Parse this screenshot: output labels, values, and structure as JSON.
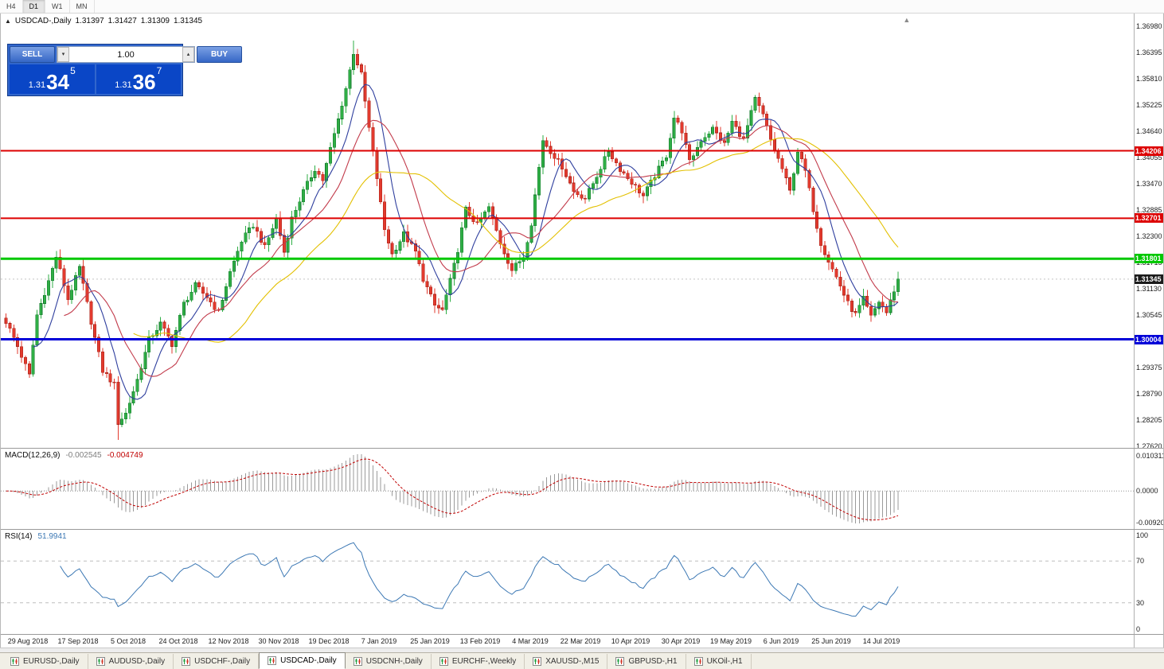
{
  "toolbar": {
    "timeframes": [
      {
        "label": "H4",
        "active": false
      },
      {
        "label": "D1",
        "active": true
      },
      {
        "label": "W1",
        "active": false
      },
      {
        "label": "MN",
        "active": false
      }
    ]
  },
  "chart": {
    "symbol_label": "USDCAD-,Daily",
    "open": "1.31397",
    "high": "1.31427",
    "low": "1.31309",
    "close": "1.31345",
    "collapse_icon": "▲",
    "shift_icon": "▲"
  },
  "trade_panel": {
    "sell_label": "SELL",
    "buy_label": "BUY",
    "lot_value": "1.00",
    "lot_down_icon": "▾",
    "lot_up_icon": "▴",
    "sell_price": {
      "prefix": "1.31",
      "big": "34",
      "sup": "5"
    },
    "buy_price": {
      "prefix": "1.31",
      "big": "36",
      "sup": "7"
    }
  },
  "chart_data": {
    "type": "candlestick",
    "symbol": "USDCAD",
    "timeframe": "Daily",
    "bar_count": 232,
    "last_close": 1.31345,
    "price_range": {
      "top": 1.37264,
      "bottom": 1.27585
    },
    "price_axis_ticks": [
      "1.36980",
      "1.36395",
      "1.35810",
      "1.35225",
      "1.34640",
      "1.34055",
      "1.33470",
      "1.32885",
      "1.32300",
      "1.31715",
      "1.31130",
      "1.30545",
      "1.29960",
      "1.29375",
      "1.28790",
      "1.28205",
      "1.27620"
    ],
    "levels": [
      {
        "price": 1.34206,
        "label": "1.34206",
        "color": "#dd0000",
        "width": 2,
        "type": "resistance"
      },
      {
        "price": 1.32701,
        "label": "1.32701",
        "color": "#dd0000",
        "width": 2,
        "type": "resistance"
      },
      {
        "price": 1.31801,
        "label": "1.31801",
        "color": "#00c800",
        "width": 3,
        "type": "support"
      },
      {
        "price": 1.30004,
        "label": "1.30004",
        "color": "#0000d8",
        "width": 3,
        "type": "support"
      }
    ],
    "current_price": {
      "value": 1.31345,
      "label": "1.31345",
      "color": "#1b1b1b"
    },
    "candle_up_color": "#2fae45",
    "candle_up_border": "#157a2e",
    "candle_down_color": "#e23a2e",
    "candle_down_border": "#a8241b",
    "moving_averages": [
      {
        "period": 8,
        "color": "#2f3f9e"
      },
      {
        "period": 16,
        "color": "#c23b4b"
      },
      {
        "period": 34,
        "color": "#e3c000"
      }
    ],
    "close_path": [
      [
        0,
        1.304
      ],
      [
        3,
        1.2985
      ],
      [
        6,
        1.292
      ],
      [
        8,
        1.3055
      ],
      [
        11,
        1.313
      ],
      [
        13,
        1.3185
      ],
      [
        16,
        1.309
      ],
      [
        19,
        1.316
      ],
      [
        22,
        1.304
      ],
      [
        25,
        1.293
      ],
      [
        28,
        1.29
      ],
      [
        29,
        1.2815
      ],
      [
        31,
        1.2835
      ],
      [
        34,
        1.291
      ],
      [
        37,
        1.3
      ],
      [
        40,
        1.3035
      ],
      [
        43,
        1.299
      ],
      [
        46,
        1.308
      ],
      [
        49,
        1.312
      ],
      [
        52,
        1.3095
      ],
      [
        55,
        1.306
      ],
      [
        58,
        1.315
      ],
      [
        61,
        1.322
      ],
      [
        64,
        1.3255
      ],
      [
        67,
        1.3205
      ],
      [
        70,
        1.327
      ],
      [
        72,
        1.3195
      ],
      [
        74,
        1.327
      ],
      [
        77,
        1.333
      ],
      [
        80,
        1.338
      ],
      [
        82,
        1.3355
      ],
      [
        84,
        1.3425
      ],
      [
        86,
        1.349
      ],
      [
        88,
        1.356
      ],
      [
        90,
        1.364
      ],
      [
        92,
        1.359
      ],
      [
        94,
        1.347
      ],
      [
        96,
        1.336
      ],
      [
        98,
        1.3245
      ],
      [
        100,
        1.319
      ],
      [
        103,
        1.3235
      ],
      [
        106,
        1.3195
      ],
      [
        108,
        1.3135
      ],
      [
        111,
        1.3075
      ],
      [
        113,
        1.3065
      ],
      [
        115,
        1.313
      ],
      [
        117,
        1.32
      ],
      [
        119,
        1.329
      ],
      [
        122,
        1.3255
      ],
      [
        125,
        1.3295
      ],
      [
        128,
        1.3215
      ],
      [
        131,
        1.3155
      ],
      [
        134,
        1.3185
      ],
      [
        136,
        1.326
      ],
      [
        139,
        1.3445
      ],
      [
        141,
        1.342
      ],
      [
        144,
        1.3385
      ],
      [
        147,
        1.333
      ],
      [
        150,
        1.3315
      ],
      [
        153,
        1.3365
      ],
      [
        156,
        1.342
      ],
      [
        159,
        1.338
      ],
      [
        162,
        1.335
      ],
      [
        165,
        1.332
      ],
      [
        168,
        1.3365
      ],
      [
        171,
        1.341
      ],
      [
        173,
        1.3495
      ],
      [
        175,
        1.3465
      ],
      [
        177,
        1.3395
      ],
      [
        180,
        1.3445
      ],
      [
        183,
        1.347
      ],
      [
        186,
        1.3435
      ],
      [
        188,
        1.3485
      ],
      [
        191,
        1.3445
      ],
      [
        194,
        1.3535
      ],
      [
        196,
        1.35
      ],
      [
        198,
        1.3445
      ],
      [
        201,
        1.338
      ],
      [
        203,
        1.333
      ],
      [
        205,
        1.342
      ],
      [
        207,
        1.3375
      ],
      [
        209,
        1.329
      ],
      [
        211,
        1.3215
      ],
      [
        213,
        1.3175
      ],
      [
        216,
        1.312
      ],
      [
        218,
        1.308
      ],
      [
        220,
        1.3055
      ],
      [
        222,
        1.309
      ],
      [
        224,
        1.305
      ],
      [
        226,
        1.3085
      ],
      [
        228,
        1.306
      ],
      [
        230,
        1.311
      ],
      [
        231,
        1.31345
      ]
    ],
    "x_labels": [
      {
        "label": "29 Aug 2018",
        "bar": 6
      },
      {
        "label": "17 Sep 2018",
        "bar": 19
      },
      {
        "label": "5 Oct 2018",
        "bar": 32
      },
      {
        "label": "24 Oct 2018",
        "bar": 45
      },
      {
        "label": "12 Nov 2018",
        "bar": 58
      },
      {
        "label": "30 Nov 2018",
        "bar": 71
      },
      {
        "label": "19 Dec 2018",
        "bar": 84
      },
      {
        "label": "7 Jan 2019",
        "bar": 97
      },
      {
        "label": "25 Jan 2019",
        "bar": 110
      },
      {
        "label": "13 Feb 2019",
        "bar": 123
      },
      {
        "label": "4 Mar 2019",
        "bar": 136
      },
      {
        "label": "22 Mar 2019",
        "bar": 149
      },
      {
        "label": "10 Apr 2019",
        "bar": 162
      },
      {
        "label": "30 Apr 2019",
        "bar": 175
      },
      {
        "label": "19 May 2019",
        "bar": 188
      },
      {
        "label": "6 Jun 2019",
        "bar": 201
      },
      {
        "label": "25 Jun 2019",
        "bar": 214
      },
      {
        "label": "14 Jul 2019",
        "bar": 227
      }
    ],
    "indicators": {
      "macd": {
        "label": "MACD(12,26,9)",
        "fast": 12,
        "slow": 26,
        "signal": 9,
        "value_main": "-0.002545",
        "value_signal": "-0.004749",
        "axis_top": "0.010311",
        "axis_zero": "0.0000",
        "axis_bottom": "-0.009203",
        "histogram_color": "#9a9a9a",
        "signal_color": "#c00000"
      },
      "rsi": {
        "label": "RSI(14)",
        "period": 14,
        "value": "51.9941",
        "axis_top": "100",
        "axis_high": "70",
        "axis_low": "30",
        "axis_bottom": "0",
        "level_high": 70,
        "level_low": 30,
        "line_color": "#3c78b4"
      }
    }
  },
  "tabs": {
    "active_index": 3,
    "items": [
      {
        "label": "EURUSD-,Daily"
      },
      {
        "label": "AUDUSD-,Daily"
      },
      {
        "label": "USDCHF-,Daily"
      },
      {
        "label": "USDCAD-,Daily"
      },
      {
        "label": "USDCNH-,Daily"
      },
      {
        "label": "EURCHF-,Weekly"
      },
      {
        "label": "XAUUSD-,M15"
      },
      {
        "label": "GBPUSD-,H1"
      },
      {
        "label": "UKOil-,H1"
      }
    ]
  }
}
